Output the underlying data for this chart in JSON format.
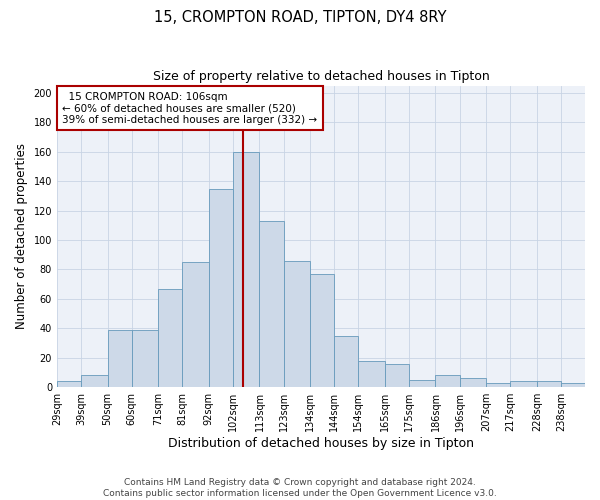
{
  "title1": "15, CROMPTON ROAD, TIPTON, DY4 8RY",
  "title2": "Size of property relative to detached houses in Tipton",
  "xlabel": "Distribution of detached houses by size in Tipton",
  "ylabel": "Number of detached properties",
  "footer1": "Contains HM Land Registry data © Crown copyright and database right 2024.",
  "footer2": "Contains public sector information licensed under the Open Government Licence v3.0.",
  "bin_labels": [
    "29sqm",
    "39sqm",
    "50sqm",
    "60sqm",
    "71sqm",
    "81sqm",
    "92sqm",
    "102sqm",
    "113sqm",
    "123sqm",
    "134sqm",
    "144sqm",
    "154sqm",
    "165sqm",
    "175sqm",
    "186sqm",
    "196sqm",
    "207sqm",
    "217sqm",
    "228sqm",
    "238sqm"
  ],
  "bin_edges": [
    29,
    39,
    50,
    60,
    71,
    81,
    92,
    102,
    113,
    123,
    134,
    144,
    154,
    165,
    175,
    186,
    196,
    207,
    217,
    228,
    238,
    248
  ],
  "bar_values": [
    4,
    8,
    39,
    39,
    67,
    85,
    135,
    160,
    113,
    86,
    77,
    35,
    18,
    16,
    5,
    8,
    6,
    3,
    4,
    4,
    3
  ],
  "bar_color": "#cdd9e8",
  "bar_edge_color": "#6699bb",
  "property_size": 106,
  "vline_color": "#aa0000",
  "annotation_text": "  15 CROMPTON ROAD: 106sqm  \n← 60% of detached houses are smaller (520)\n39% of semi-detached houses are larger (332) →",
  "annotation_box_color": "#aa0000",
  "annotation_bg": "#ffffff",
  "ylim": [
    0,
    205
  ],
  "yticks": [
    0,
    20,
    40,
    60,
    80,
    100,
    120,
    140,
    160,
    180,
    200
  ],
  "grid_color": "#c8d4e4",
  "bg_color": "#edf1f8",
  "title1_fontsize": 10.5,
  "title2_fontsize": 9,
  "xlabel_fontsize": 9,
  "ylabel_fontsize": 8.5,
  "tick_fontsize": 7,
  "footer_fontsize": 6.5,
  "ann_fontsize": 7.5
}
